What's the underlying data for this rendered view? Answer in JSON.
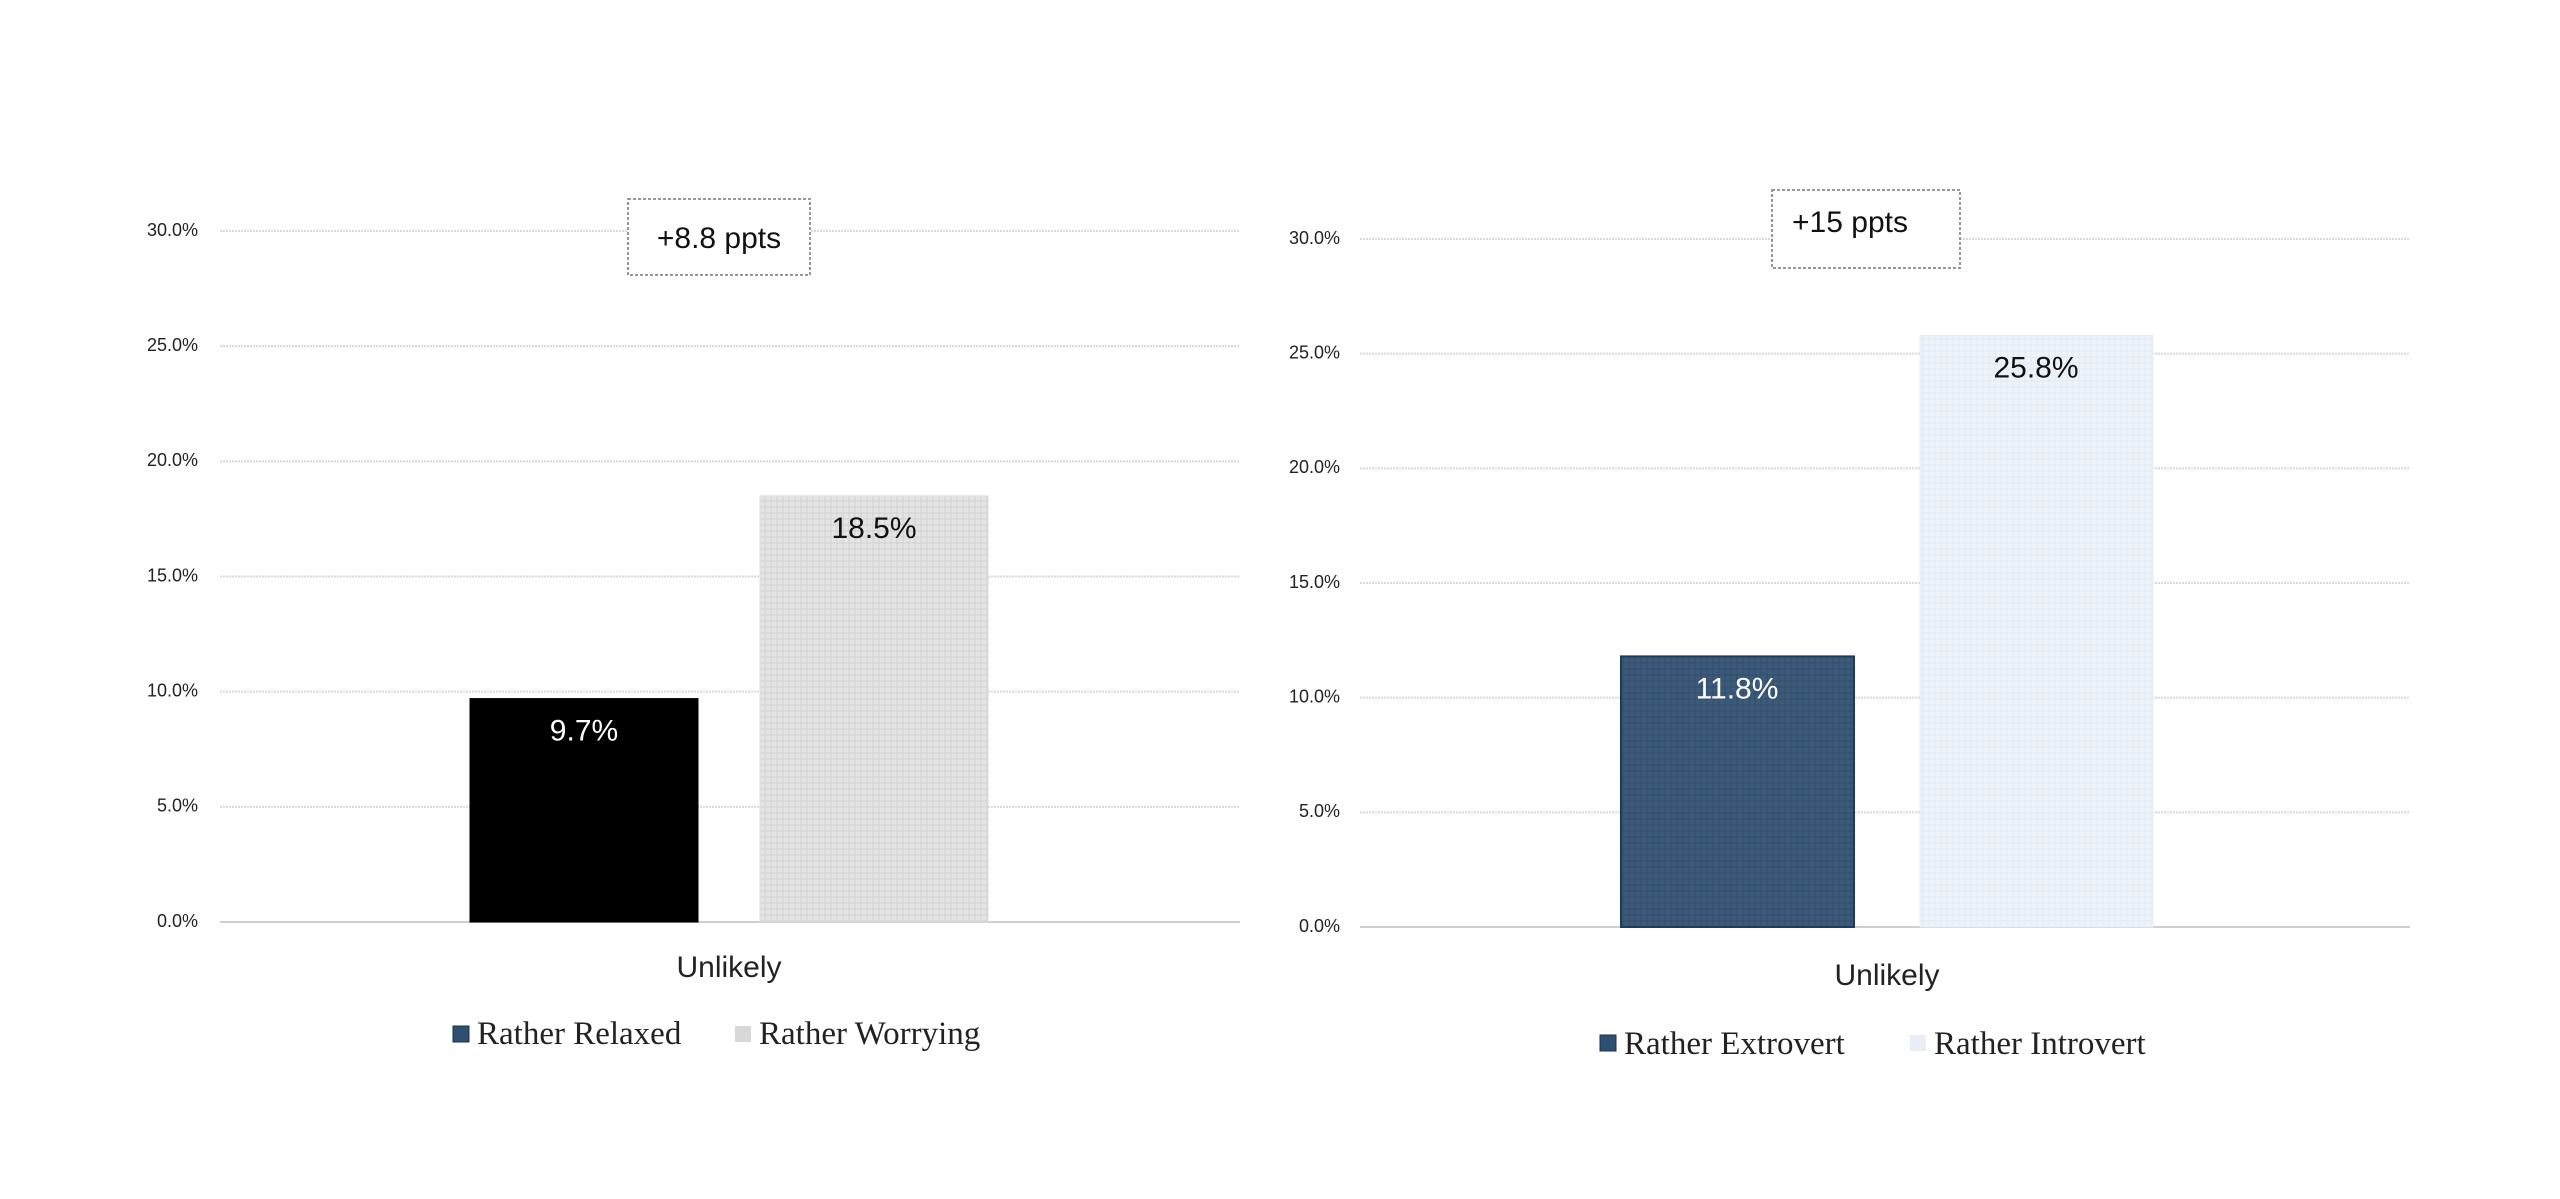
{
  "chart_data": [
    {
      "type": "bar",
      "categories": [
        "Unlikely"
      ],
      "series": [
        {
          "name": "Rather Relaxed",
          "values": [
            9.7
          ],
          "label": "9.7%"
        },
        {
          "name": "Rather Worrying",
          "values": [
            18.5
          ],
          "label": "18.5%"
        }
      ],
      "ylim": [
        0,
        30
      ],
      "yticks": [
        "0.0%",
        "5.0%",
        "10.0%",
        "15.0%",
        "20.0%",
        "25.0%",
        "30.0%"
      ],
      "annotation": "+8.8 ppts",
      "grid": true,
      "legend": "bottom",
      "colors": {
        "bar1": "#000000",
        "bar2": "#e4e4e4",
        "bar1_label": "#ffffff",
        "bar2_label": "#111111",
        "legend_swatch1": "#2d4f72",
        "legend_swatch2": "#d8d8d8"
      }
    },
    {
      "type": "bar",
      "categories": [
        "Unlikely"
      ],
      "series": [
        {
          "name": "Rather Extrovert",
          "values": [
            11.8
          ],
          "label": "11.8%"
        },
        {
          "name": "Rather Introvert",
          "values": [
            25.8
          ],
          "label": "25.8%"
        }
      ],
      "ylim": [
        0,
        30
      ],
      "yticks": [
        "0.0%",
        "5.0%",
        "10.0%",
        "15.0%",
        "20.0%",
        "25.0%",
        "30.0%"
      ],
      "annotation": "+15 ppts",
      "grid": true,
      "legend": "bottom",
      "colors": {
        "bar1": "#3c5a7a",
        "bar2": "#eef3f9",
        "bar1_label": "#ffffff",
        "bar2_label": "#111111",
        "legend_swatch1": "#2d4f72",
        "legend_swatch2": "#e8eef6"
      }
    }
  ]
}
